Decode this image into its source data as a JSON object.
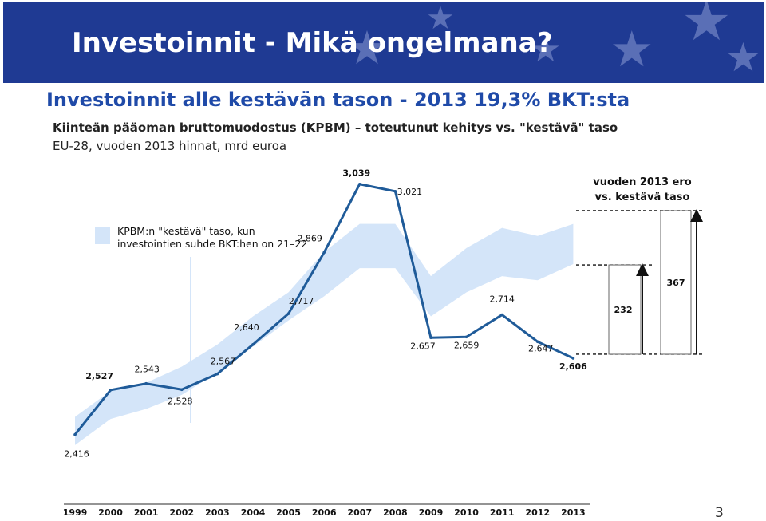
{
  "slide": {
    "title": "Investoinnit - Mikä ongelmana?",
    "subtitle": "Investoinnit alle kestävän tason - 2013 19,3% BKT:sta",
    "page_number": "3",
    "banner_color": "#1f3a93"
  },
  "chart_data": {
    "type": "line",
    "title": "Kiinteän pääoman bruttomuodostus (KPBM) – toteutunut kehitys vs. \"kestävä\" taso",
    "subtitle": "EU-28, vuoden 2013 hinnat, mrd euroa",
    "categories": [
      "1999",
      "2000",
      "2001",
      "2002",
      "2003",
      "2004",
      "2005",
      "2006",
      "2007",
      "2008",
      "2009",
      "2010",
      "2011",
      "2012",
      "2013"
    ],
    "series": [
      {
        "type": "line",
        "color": "#1f5b99",
        "values": [
          2.416,
          2.527,
          2.543,
          2.528,
          2.567,
          2.64,
          2.717,
          2.869,
          3.039,
          3.021,
          2.657,
          2.659,
          2.714,
          2.647,
          2.606
        ],
        "labels": [
          "2,416",
          "2,527",
          "2,543",
          "2,528",
          "2,567",
          "2,640",
          "2,717",
          "2,869",
          "3,039",
          "3,021",
          "2,657",
          "2,659",
          "2,714",
          "2,647",
          "2,606"
        ],
        "bold_labels": [
          1,
          8,
          14
        ]
      },
      {
        "type": "band",
        "name": "KPBM:n \"kestävä\" taso, kun investointien suhde BKT:hen on 21–22",
        "color": "#d4e5f9",
        "lower": [
          2.39,
          2.455,
          2.48,
          2.515,
          2.57,
          2.635,
          2.7,
          2.76,
          2.83,
          2.83,
          2.71,
          2.77,
          2.81,
          2.8,
          2.84
        ],
        "upper": [
          2.46,
          2.525,
          2.545,
          2.585,
          2.64,
          2.71,
          2.77,
          2.87,
          2.94,
          2.94,
          2.81,
          2.88,
          2.93,
          2.91,
          2.94
        ]
      }
    ],
    "annotations": {
      "gap_title_line1": "vuoden 2013 ero",
      "gap_title_line2": "vs. kestävä taso",
      "gaps": [
        {
          "label": "232",
          "top_value": 2.838
        },
        {
          "label": "367",
          "top_value": 2.973
        }
      ]
    },
    "ylim": [
      2.35,
      3.1
    ],
    "legend_position": "top-left",
    "xlabel": "",
    "ylabel": ""
  }
}
